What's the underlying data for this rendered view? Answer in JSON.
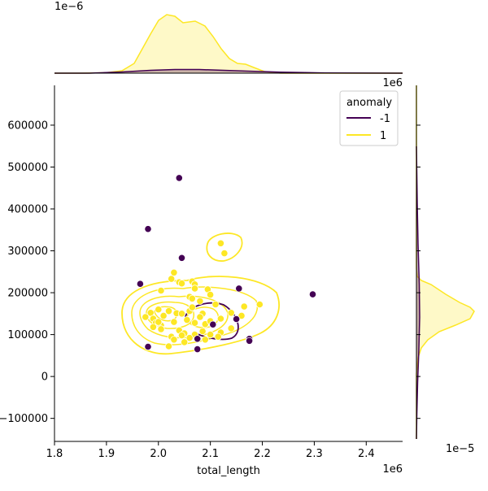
{
  "chart_data": {
    "type": "scatter",
    "subtype": "jointplot-kde",
    "xlabel": "total_length",
    "ylabel": "",
    "x_offset_label": "1e6",
    "y_offset_label": "1e6",
    "top_marginal_offset_label": "1e−6",
    "right_marginal_offset_label": "1e−5",
    "xlim": [
      1.8,
      2.47
    ],
    "ylim": [
      -155000,
      695000
    ],
    "x_ticks": [
      "1.8",
      "1.9",
      "2.0",
      "2.1",
      "2.2",
      "2.3",
      "2.4"
    ],
    "x_tick_values": [
      1.8,
      1.9,
      2.0,
      2.1,
      2.2,
      2.3,
      2.4
    ],
    "y_ticks": [
      "−100000",
      "0",
      "100000",
      "200000",
      "300000",
      "400000",
      "500000",
      "600000"
    ],
    "y_tick_values": [
      -100000,
      0,
      100000,
      200000,
      300000,
      400000,
      500000,
      600000
    ],
    "grid": false,
    "legend": {
      "title": "anomaly",
      "placement": "top-right",
      "entries": [
        {
          "label": "-1",
          "color": "#440154"
        },
        {
          "label": "1",
          "color": "#fde725"
        }
      ]
    },
    "colors": {
      "anomaly_neg": "#440154",
      "anomaly_pos": "#fde725",
      "edge": "#ffffff"
    },
    "series": [
      {
        "name": "-1",
        "color": "#440154",
        "points": [
          [
            2.04,
            474000
          ],
          [
            1.98,
            352000
          ],
          [
            2.045,
            283000
          ],
          [
            1.965,
            221000
          ],
          [
            2.155,
            210000
          ],
          [
            2.297,
            196000
          ],
          [
            2.15,
            137000
          ],
          [
            2.105,
            124000
          ],
          [
            2.075,
            90000
          ],
          [
            2.175,
            90000
          ],
          [
            2.175,
            85000
          ],
          [
            1.98,
            71000
          ],
          [
            2.075,
            65000
          ]
        ]
      },
      {
        "name": "1",
        "color": "#fde725",
        "points": [
          [
            2.12,
            318000
          ],
          [
            2.127,
            294000
          ],
          [
            2.03,
            248000
          ],
          [
            2.025,
            233000
          ],
          [
            2.04,
            225000
          ],
          [
            2.045,
            222000
          ],
          [
            2.065,
            227000
          ],
          [
            2.07,
            220000
          ],
          [
            2.005,
            205000
          ],
          [
            2.07,
            210000
          ],
          [
            2.095,
            208000
          ],
          [
            2.1,
            195000
          ],
          [
            2.06,
            190000
          ],
          [
            2.065,
            186000
          ],
          [
            2.08,
            180000
          ],
          [
            2.11,
            172000
          ],
          [
            2.165,
            167000
          ],
          [
            2.195,
            172000
          ],
          [
            2.0,
            160000
          ],
          [
            2.02,
            156000
          ],
          [
            1.985,
            152000
          ],
          [
            1.975,
            142000
          ],
          [
            1.99,
            138000
          ],
          [
            2.01,
            145000
          ],
          [
            2.035,
            151000
          ],
          [
            2.06,
            156000
          ],
          [
            2.085,
            150000
          ],
          [
            2.14,
            152000
          ],
          [
            2.16,
            145000
          ],
          [
            1.995,
            128000
          ],
          [
            2.005,
            122000
          ],
          [
            2.03,
            130000
          ],
          [
            2.055,
            135000
          ],
          [
            2.07,
            128000
          ],
          [
            2.09,
            125000
          ],
          [
            2.1,
            132000
          ],
          [
            2.12,
            138000
          ],
          [
            2.005,
            113000
          ],
          [
            2.04,
            110000
          ],
          [
            2.05,
            103000
          ],
          [
            2.07,
            100000
          ],
          [
            2.085,
            108000
          ],
          [
            2.1,
            100000
          ],
          [
            2.12,
            105000
          ],
          [
            2.14,
            115000
          ],
          [
            2.025,
            95000
          ],
          [
            2.06,
            92000
          ],
          [
            2.09,
            88000
          ],
          [
            2.05,
            82000
          ],
          [
            2.02,
            72000
          ],
          [
            2.045,
            98000
          ],
          [
            2.03,
            88000
          ],
          [
            2.115,
            95000
          ],
          [
            2.0,
            130000
          ],
          [
            1.99,
            118000
          ],
          [
            2.08,
            142000
          ],
          [
            2.045,
            150000
          ],
          [
            2.065,
            165000
          ]
        ]
      }
    ]
  }
}
